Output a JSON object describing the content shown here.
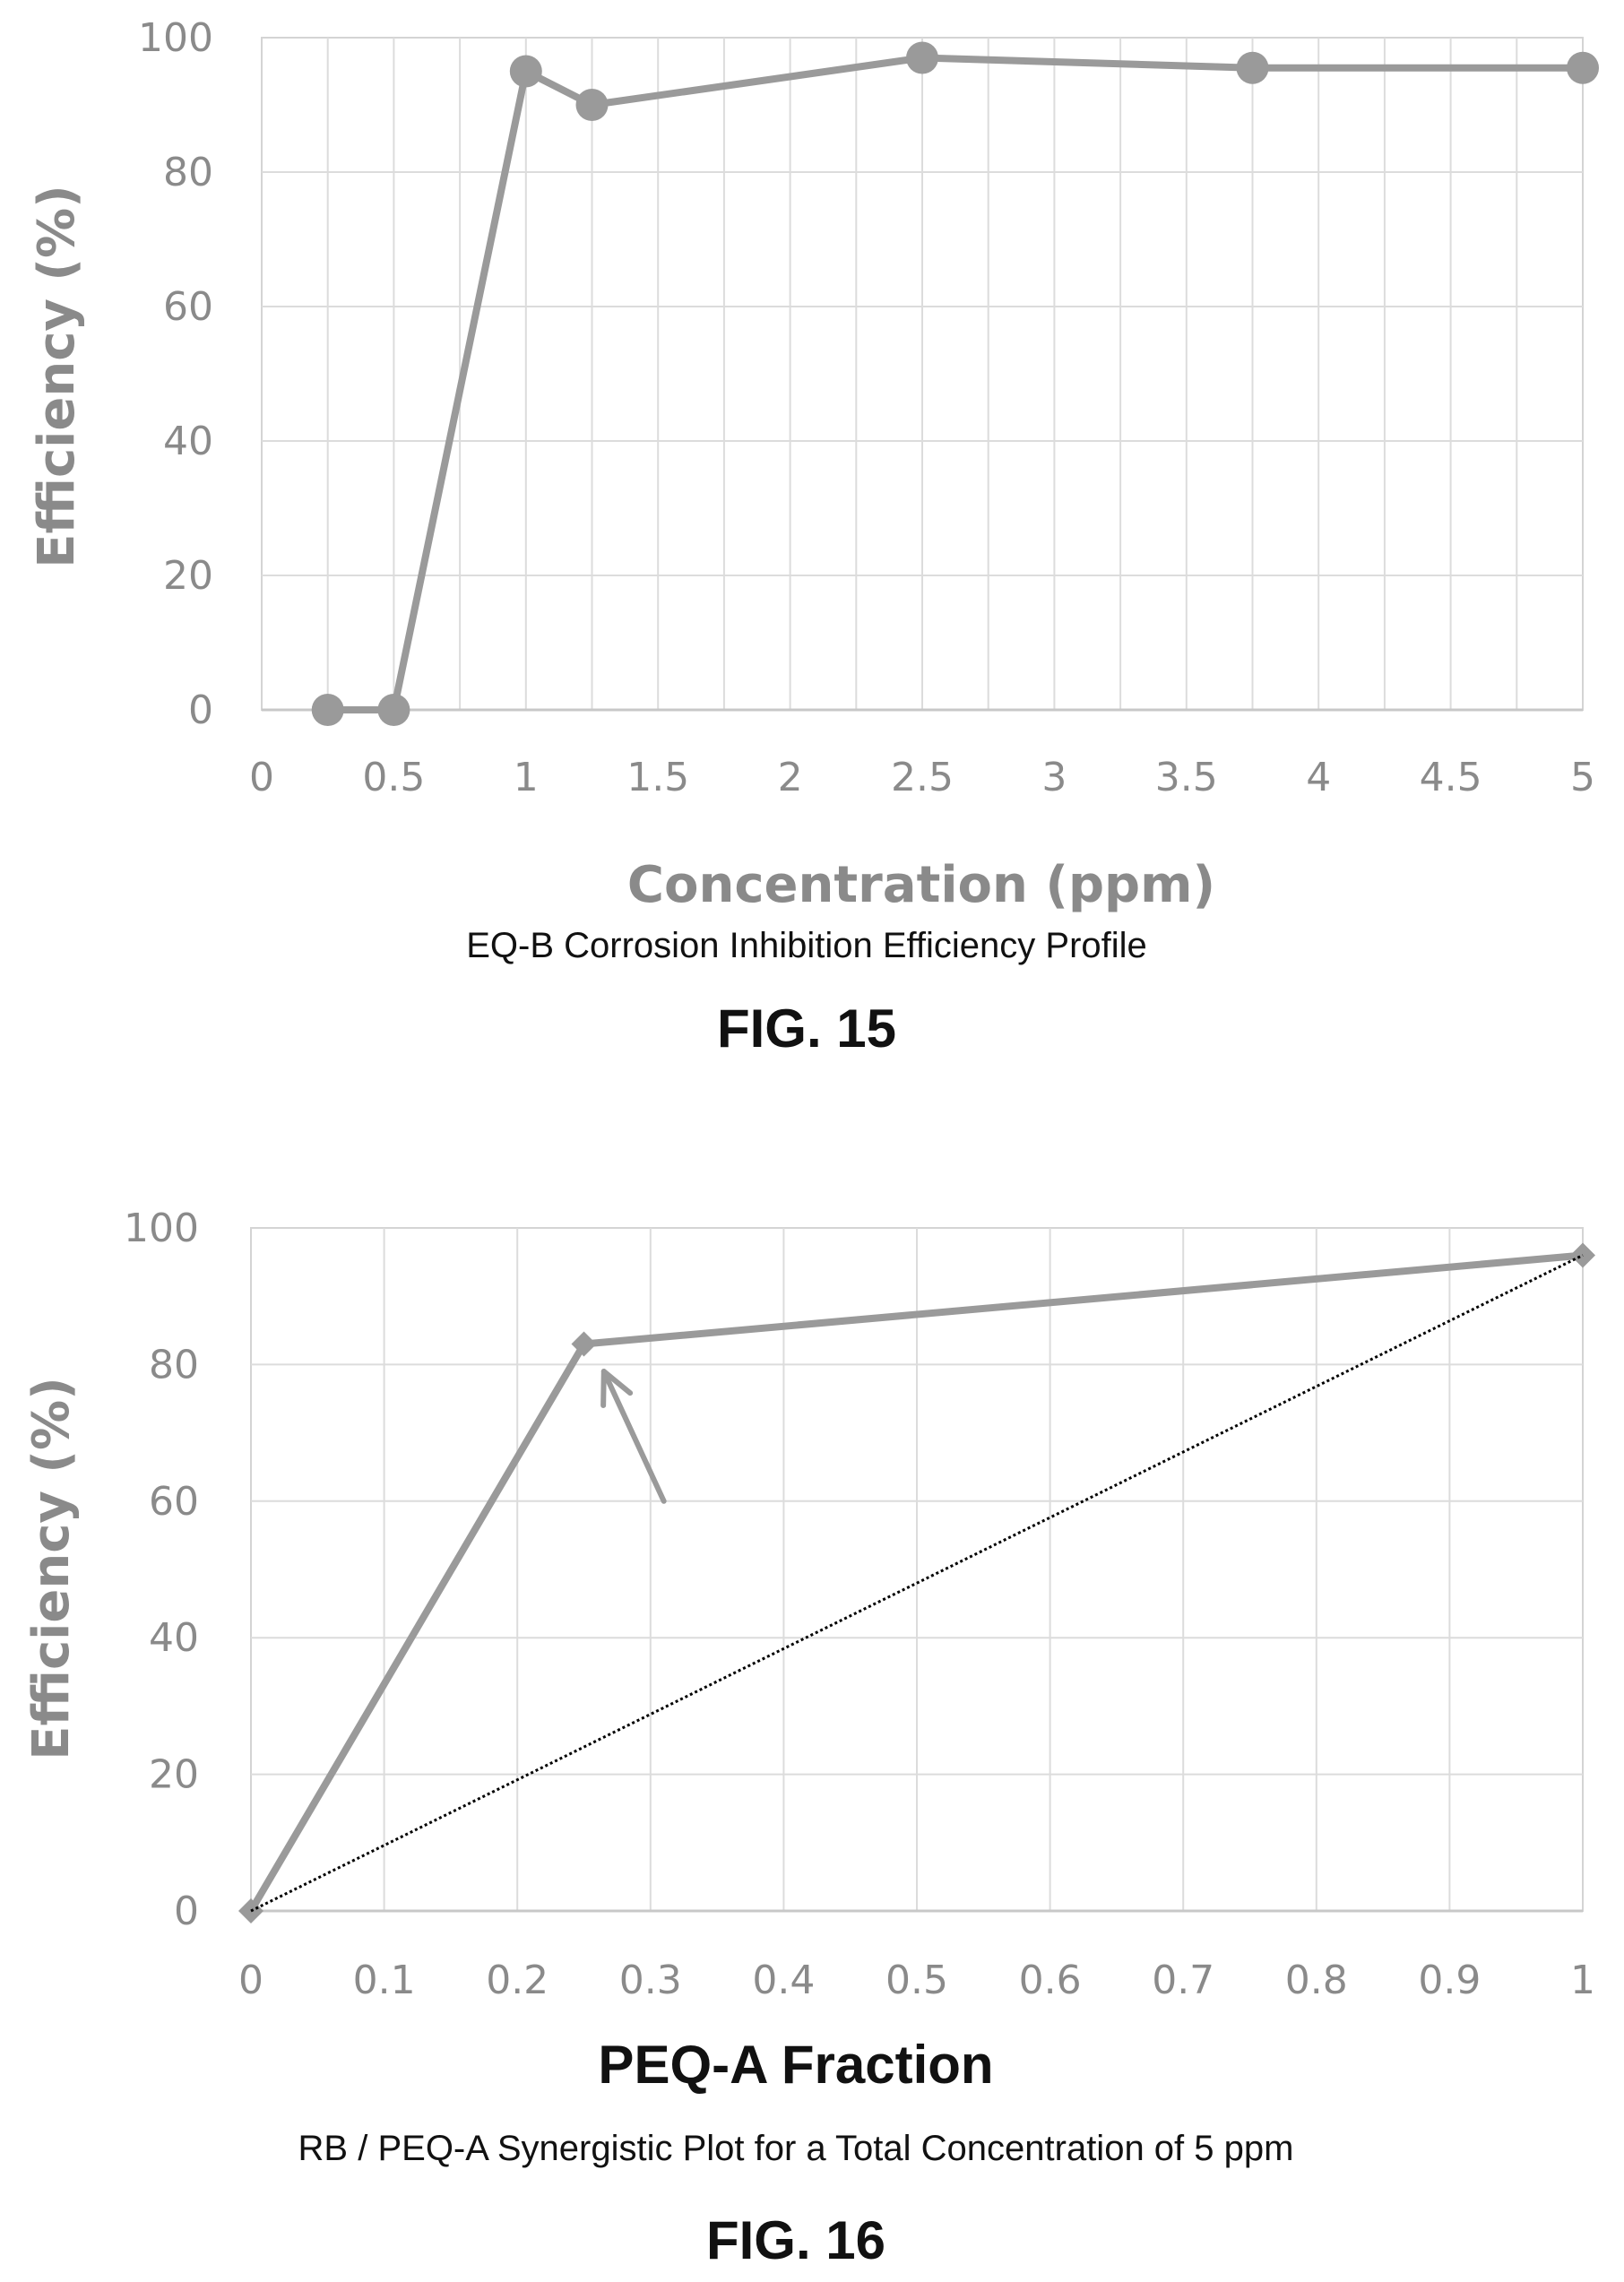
{
  "chart_data": [
    {
      "type": "line",
      "xlabel": "Concentration (ppm)",
      "ylabel": "Efficiency (%)",
      "caption": "EQ-B Corrosion Inhibition Efficiency Profile",
      "figure_label": "FIG. 15",
      "xlim": [
        0,
        5
      ],
      "ylim": [
        0,
        100
      ],
      "x_ticks": [
        "0",
        "0.5",
        "1",
        "1.5",
        "2",
        "2.5",
        "3",
        "3.5",
        "4",
        "4.5",
        "5"
      ],
      "y_ticks": [
        "0",
        "20",
        "40",
        "60",
        "80",
        "100"
      ],
      "grid": true,
      "series": [
        {
          "marker": "circle",
          "color": "#9a9a9a",
          "x": [
            0.25,
            0.5,
            1.0,
            1.25,
            2.5,
            3.75,
            5.0
          ],
          "y": [
            0,
            0,
            95,
            90,
            97,
            95.5,
            95.5
          ]
        }
      ]
    },
    {
      "type": "line",
      "xlabel": "PEQ-A Fraction",
      "ylabel": "Efficiency (%)",
      "caption": "RB / PEQ-A Synergistic Plot for a Total Concentration of 5 ppm",
      "figure_label": "FIG. 16",
      "xlim": [
        0,
        1
      ],
      "ylim": [
        0,
        100
      ],
      "x_ticks": [
        "0",
        "0.1",
        "0.2",
        "0.3",
        "0.4",
        "0.5",
        "0.6",
        "0.7",
        "0.8",
        "0.9",
        "1"
      ],
      "y_ticks": [
        "0",
        "20",
        "40",
        "60",
        "80",
        "100"
      ],
      "grid": true,
      "series": [
        {
          "marker": "diamond",
          "color": "#9a9a9a",
          "x": [
            0,
            0.25,
            1.0
          ],
          "y": [
            0,
            83,
            96
          ]
        },
        {
          "marker": "none",
          "color": "#000000",
          "style": "dotted",
          "x": [
            0,
            1.0
          ],
          "y": [
            0,
            96
          ]
        }
      ],
      "annotations": [
        {
          "type": "arrow",
          "color": "#9a9a9a",
          "from": [
            0.31,
            60
          ],
          "to": [
            0.265,
            79
          ]
        }
      ]
    }
  ]
}
